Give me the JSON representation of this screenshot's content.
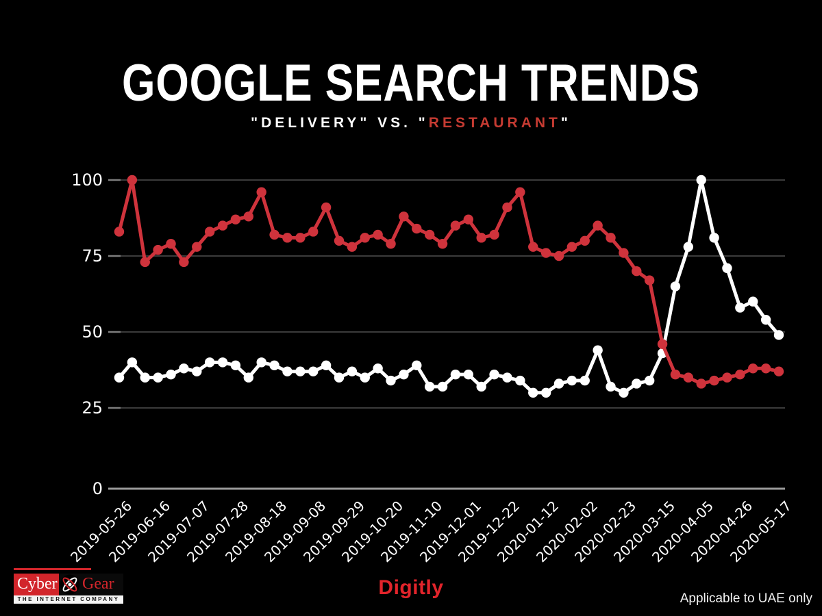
{
  "colors": {
    "chart_red": "#cf333c",
    "chart_white": "#ffffff",
    "accent_red": "#e2242b",
    "logo_red": "#d2252b",
    "subtitle_red": "#c63b32",
    "grid": "#3b3b3b",
    "axis": "#9a9a9a"
  },
  "header": {
    "title": "GOOGLE SEARCH TRENDS",
    "subtitle_part1": "\"DELIVERY\" VS. \"",
    "subtitle_part2": "RESTAURANT",
    "subtitle_part3": "\""
  },
  "footer": {
    "logo_cyber": "Cyber",
    "logo_gear": "Gear",
    "logo_tagline": "THE INTERNET COMPANY",
    "brand": "Digitly",
    "note": "Applicable to UAE only"
  },
  "chart_data": {
    "type": "line",
    "title": "GOOGLE SEARCH TRENDS",
    "subtitle": "\"DELIVERY\" VS. \"RESTAURANT\"",
    "xlabel": "",
    "ylabel": "",
    "ylim": [
      0,
      100
    ],
    "yticks": [
      0,
      25,
      50,
      75,
      100
    ],
    "grid": "horizontal",
    "legend": "none",
    "x": [
      "2019-05-26",
      "2019-06-02",
      "2019-06-09",
      "2019-06-16",
      "2019-06-23",
      "2019-06-30",
      "2019-07-07",
      "2019-07-14",
      "2019-07-21",
      "2019-07-28",
      "2019-08-04",
      "2019-08-11",
      "2019-08-18",
      "2019-08-25",
      "2019-09-01",
      "2019-09-08",
      "2019-09-15",
      "2019-09-22",
      "2019-09-29",
      "2019-10-06",
      "2019-10-13",
      "2019-10-20",
      "2019-10-27",
      "2019-11-03",
      "2019-11-10",
      "2019-11-17",
      "2019-11-24",
      "2019-12-01",
      "2019-12-08",
      "2019-12-15",
      "2019-12-22",
      "2019-12-29",
      "2020-01-05",
      "2020-01-12",
      "2020-01-19",
      "2020-01-26",
      "2020-02-02",
      "2020-02-09",
      "2020-02-16",
      "2020-02-23",
      "2020-03-01",
      "2020-03-08",
      "2020-03-15",
      "2020-03-22",
      "2020-03-29",
      "2020-04-05",
      "2020-04-12",
      "2020-04-19",
      "2020-04-26",
      "2020-05-03",
      "2020-05-10",
      "2020-05-17"
    ],
    "x_tick_labels": [
      "2019-05-26",
      "2019-06-16",
      "2019-07-07",
      "2019-07-28",
      "2019-08-18",
      "2019-09-08",
      "2019-09-29",
      "2019-10-20",
      "2019-11-10",
      "2019-12-01",
      "2019-12-22",
      "2020-01-12",
      "2020-02-02",
      "2020-02-23",
      "2020-03-15",
      "2020-04-05",
      "2020-04-26",
      "2020-05-17"
    ],
    "x_tick_every": 3,
    "series": [
      {
        "name": "Delivery",
        "color": "#ffffff",
        "values": [
          35,
          40,
          35,
          35,
          36,
          38,
          37,
          40,
          40,
          39,
          35,
          40,
          39,
          37,
          37,
          37,
          39,
          35,
          37,
          35,
          38,
          34,
          36,
          39,
          32,
          32,
          36,
          36,
          32,
          36,
          35,
          34,
          30,
          30,
          33,
          34,
          34,
          44,
          32,
          30,
          33,
          34,
          43,
          65,
          78,
          100,
          81,
          71,
          58,
          60,
          54,
          49
        ]
      },
      {
        "name": "Restaurant",
        "color": "#cf333c",
        "values": [
          83,
          100,
          73,
          77,
          79,
          73,
          78,
          83,
          85,
          87,
          88,
          96,
          82,
          81,
          81,
          83,
          91,
          80,
          78,
          81,
          82,
          79,
          88,
          84,
          82,
          79,
          85,
          87,
          81,
          82,
          91,
          96,
          78,
          76,
          75,
          78,
          80,
          85,
          81,
          76,
          70,
          67,
          46,
          36,
          35,
          33,
          34,
          35,
          36,
          38,
          38,
          37
        ]
      }
    ]
  }
}
